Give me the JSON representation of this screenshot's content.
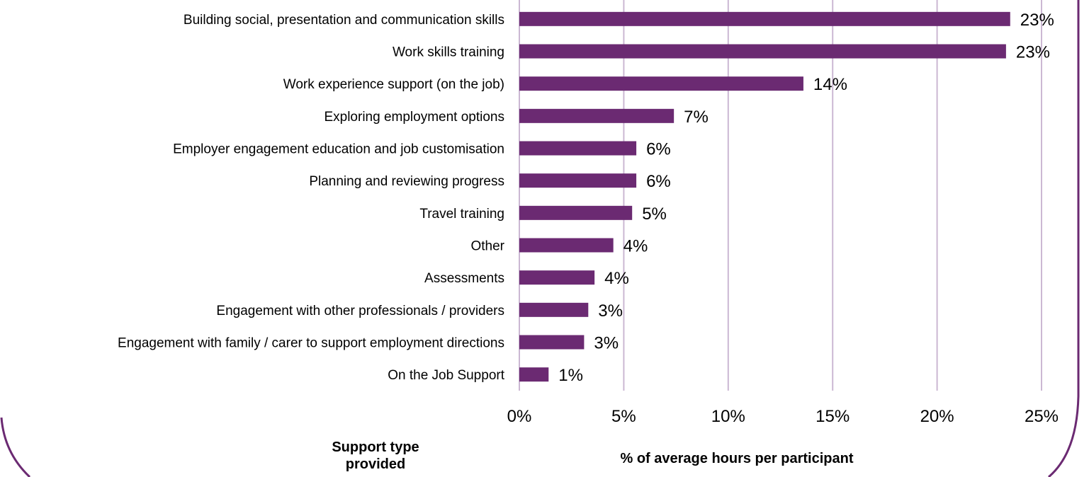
{
  "chart_data": {
    "type": "bar",
    "orientation": "horizontal",
    "categories": [
      "Building social, presentation and communication skills",
      "Work skills training",
      "Work experience support (on the job)",
      "Exploring employment options",
      "Employer engagement education and job customisation",
      "Planning and reviewing progress",
      "Travel training",
      "Other",
      "Assessments",
      "Engagement with other professionals / providers",
      "Engagement with family / carer to support employment directions",
      "On the Job Support"
    ],
    "values": [
      23.5,
      23.3,
      13.6,
      7.4,
      5.6,
      5.6,
      5.4,
      4.5,
      3.6,
      3.3,
      3.1,
      1.4
    ],
    "value_labels": [
      "23%",
      "23%",
      "14%",
      "7%",
      "6%",
      "6%",
      "5%",
      "4%",
      "4%",
      "3%",
      "3%",
      "1%"
    ],
    "x_ticks": [
      0,
      5,
      10,
      15,
      20,
      25
    ],
    "x_tick_labels": [
      "0%",
      "5%",
      "10%",
      "15%",
      "20%",
      "25%"
    ],
    "xlim": [
      0,
      25
    ],
    "xlabel": "% of average hours per participant",
    "ylabel": "Support type provided",
    "grid": true,
    "bar_color": "#6b2a72",
    "grid_color": "#cbb8d3",
    "frame_color": "#6b2a72"
  }
}
